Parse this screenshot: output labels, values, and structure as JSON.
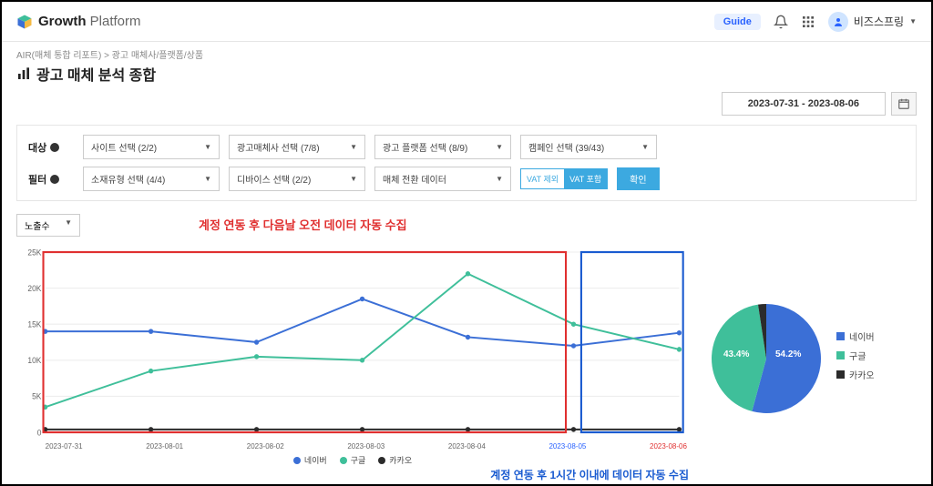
{
  "brand": {
    "name1": "Growth",
    "name2": "Platform"
  },
  "header": {
    "guide": "Guide",
    "user_name": "비즈스프링"
  },
  "breadcrumb": "AIR(매체 통합 리포트)  >  광고 매체사/플랫폼/상품",
  "page_title": "광고 매체 분석 종합",
  "date_range": "2023-07-31 - 2023-08-06",
  "filters": {
    "row1_label": "대상",
    "row2_label": "필터",
    "site": "사이트 선택 (2/2)",
    "advertiser": "광고매체사 선택 (7/8)",
    "platform": "광고 플랫폼 선택 (8/9)",
    "campaign": "캠페인 선택 (39/43)",
    "creative": "소재유형 선택 (4/4)",
    "device": "디바이스 선택 (2/2)",
    "conv": "매체 전환 데이터",
    "vat_off": "VAT 제외",
    "vat_on": "VAT 포함",
    "confirm": "확인"
  },
  "metric_select": "노출수",
  "annotation_red": "계정 연동 후 다음날 오전 데이터 자동 수집",
  "annotation_blue": "계정 연동 후 1시간 이내에 데이터 자동 수집",
  "line_chart": {
    "type": "line",
    "ylim": [
      0,
      25000
    ],
    "yticks": [
      "0",
      "5K",
      "10K",
      "15K",
      "20K",
      "25K"
    ],
    "x_labels": [
      "2023-07-31",
      "2023-08-01",
      "2023-08-02",
      "2023-08-03",
      "2023-08-04",
      "2023-08-05",
      "2023-08-06"
    ],
    "series": [
      {
        "name": "네이버",
        "color": "#3b6fd6",
        "values": [
          14000,
          14000,
          12500,
          18500,
          13200,
          12000,
          13800
        ]
      },
      {
        "name": "구글",
        "color": "#3fbf9a",
        "values": [
          3500,
          8500,
          10500,
          10000,
          22000,
          15000,
          11500
        ]
      },
      {
        "name": "카카오",
        "color": "#2b2b2b",
        "values": [
          400,
          400,
          400,
          400,
          400,
          400,
          400
        ]
      }
    ],
    "grid_color": "#eeeeee",
    "red_box_color": "#e03030",
    "blue_box_color": "#1a5bd0"
  },
  "pie_chart": {
    "type": "pie",
    "slices": [
      {
        "name": "네이버",
        "color": "#3b6fd6",
        "pct": 54.2
      },
      {
        "name": "구글",
        "color": "#3fbf9a",
        "pct": 43.4
      },
      {
        "name": "카카오",
        "color": "#2b2b2b",
        "pct": 2.4
      }
    ]
  },
  "legend": {
    "s1": "네이버",
    "s2": "구글",
    "s3": "카카오"
  }
}
